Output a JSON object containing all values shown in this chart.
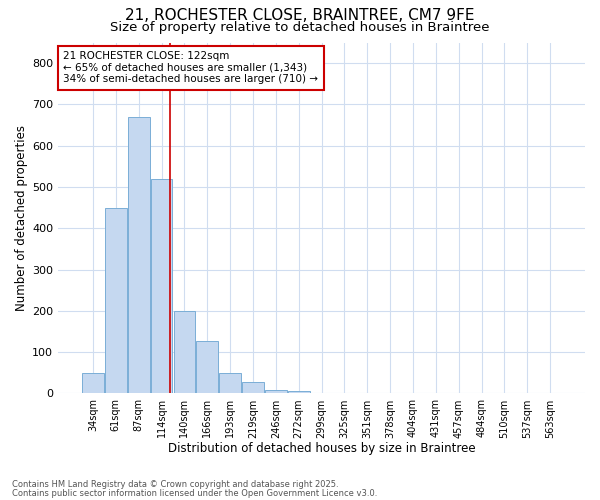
{
  "title1": "21, ROCHESTER CLOSE, BRAINTREE, CM7 9FE",
  "title2": "Size of property relative to detached houses in Braintree",
  "xlabel": "Distribution of detached houses by size in Braintree",
  "ylabel": "Number of detached properties",
  "categories": [
    "34sqm",
    "61sqm",
    "87sqm",
    "114sqm",
    "140sqm",
    "166sqm",
    "193sqm",
    "219sqm",
    "246sqm",
    "272sqm",
    "299sqm",
    "325sqm",
    "351sqm",
    "378sqm",
    "404sqm",
    "431sqm",
    "457sqm",
    "484sqm",
    "510sqm",
    "537sqm",
    "563sqm"
  ],
  "values": [
    50,
    450,
    670,
    520,
    200,
    128,
    50,
    27,
    8,
    5,
    1,
    0,
    0,
    0,
    0,
    0,
    0,
    0,
    0,
    0,
    0
  ],
  "bar_color": "#c5d8f0",
  "bar_edge_color": "#7aaed6",
  "vline_x": 3.35,
  "vline_color": "#cc0000",
  "annotation_text": "21 ROCHESTER CLOSE: 122sqm\n← 65% of detached houses are smaller (1,343)\n34% of semi-detached houses are larger (710) →",
  "annotation_box_color": "#ffffff",
  "annotation_box_edge": "#cc0000",
  "ylim": [
    0,
    850
  ],
  "yticks": [
    0,
    100,
    200,
    300,
    400,
    500,
    600,
    700,
    800
  ],
  "footer1": "Contains HM Land Registry data © Crown copyright and database right 2025.",
  "footer2": "Contains public sector information licensed under the Open Government Licence v3.0.",
  "bg_color": "#ffffff",
  "grid_color": "#d0ddf0",
  "title1_fontsize": 11,
  "title2_fontsize": 9.5,
  "ann_fontsize": 7.5,
  "xlabel_fontsize": 8.5,
  "ylabel_fontsize": 8.5,
  "ytick_fontsize": 8,
  "xtick_fontsize": 7
}
